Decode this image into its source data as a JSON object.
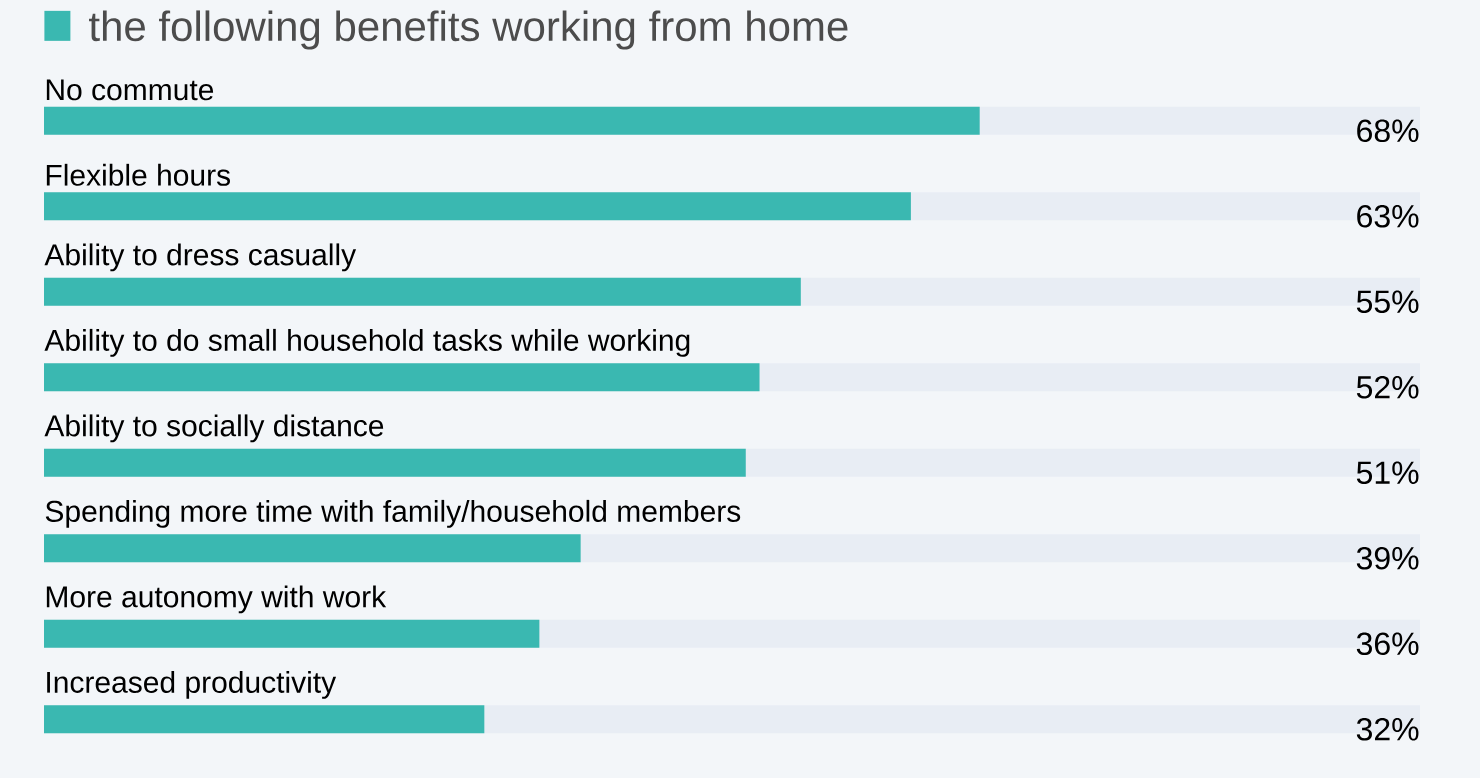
{
  "chart_data": {
    "type": "bar",
    "orientation": "horizontal",
    "categories": [
      "No commute",
      "Flexible hours",
      "Ability to dress casually",
      "Ability to do small household tasks while working",
      "Ability to socially distance",
      "Spending more time with family/household members",
      "More autonomy with work",
      "Increased productivity"
    ],
    "series": [
      {
        "name": "the following benefits working from home",
        "color": "#3ab8b1",
        "values": [
          68,
          63,
          55,
          52,
          51,
          39,
          36,
          32
        ],
        "value_labels": [
          "68%",
          "63%",
          "55%",
          "52%",
          "51%",
          "39%",
          "36%",
          "32%"
        ]
      }
    ],
    "xlim": [
      0,
      100
    ],
    "legend": "top left"
  }
}
